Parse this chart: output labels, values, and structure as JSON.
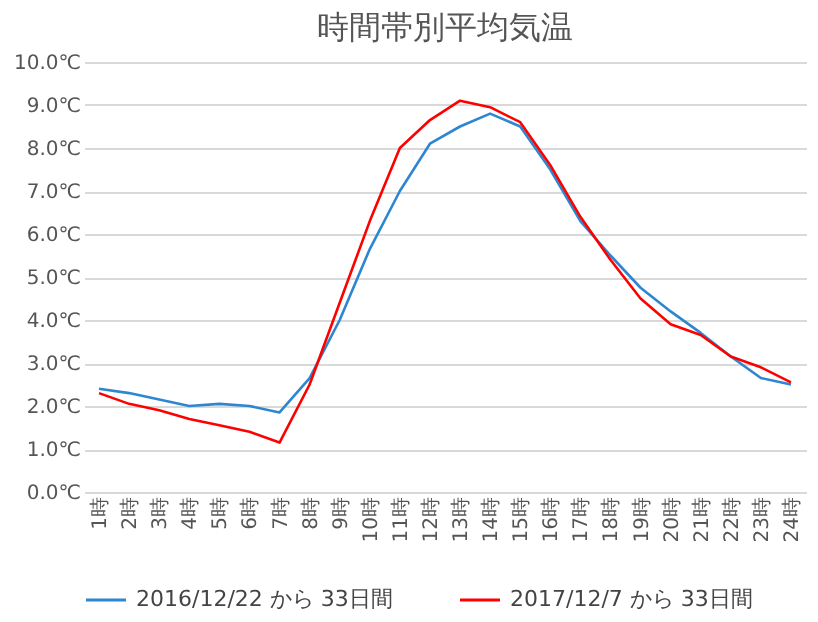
{
  "chart_data": {
    "type": "line",
    "title": "時間帯別平均気温",
    "categories": [
      "1時",
      "2時",
      "3時",
      "4時",
      "5時",
      "6時",
      "7時",
      "8時",
      "9時",
      "10時",
      "11時",
      "12時",
      "13時",
      "14時",
      "15時",
      "16時",
      "17時",
      "18時",
      "19時",
      "20時",
      "21時",
      "22時",
      "23時",
      "24時"
    ],
    "series": [
      {
        "name": "2016/12/22 から 33日間",
        "color": "#2e86d0",
        "values": [
          2.4,
          2.3,
          2.15,
          2.0,
          2.05,
          2.0,
          1.85,
          2.65,
          4.0,
          5.65,
          7.0,
          8.1,
          8.5,
          8.8,
          8.5,
          7.5,
          6.3,
          5.5,
          4.75,
          4.2,
          3.7,
          3.15,
          2.65,
          2.5
        ]
      },
      {
        "name": "2017/12/7 から 33日間",
        "color": "#ff0000",
        "values": [
          2.3,
          2.05,
          1.9,
          1.7,
          1.55,
          1.4,
          1.15,
          2.5,
          4.4,
          6.3,
          8.0,
          8.65,
          9.1,
          8.95,
          8.6,
          7.6,
          6.4,
          5.4,
          4.5,
          3.9,
          3.65,
          3.15,
          2.9,
          2.55
        ]
      }
    ],
    "ylim": [
      0,
      10
    ],
    "yticks": [
      {
        "value": 0,
        "label": "0.0℃"
      },
      {
        "value": 1,
        "label": "1.0℃"
      },
      {
        "value": 2,
        "label": "2.0℃"
      },
      {
        "value": 3,
        "label": "3.0℃"
      },
      {
        "value": 4,
        "label": "4.0℃"
      },
      {
        "value": 5,
        "label": "5.0℃"
      },
      {
        "value": 6,
        "label": "6.0℃"
      },
      {
        "value": 7,
        "label": "7.0℃"
      },
      {
        "value": 8,
        "label": "8.0℃"
      },
      {
        "value": 9,
        "label": "9.0℃"
      },
      {
        "value": 10,
        "label": "10.0℃"
      }
    ],
    "grid": "y",
    "legend": "bottom",
    "marker": "none",
    "line_style": "solid"
  }
}
